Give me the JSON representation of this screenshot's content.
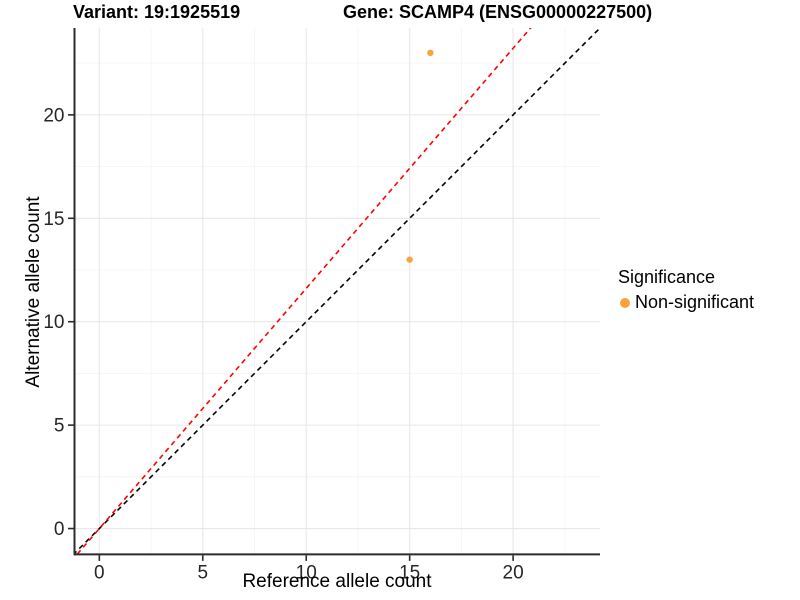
{
  "figure": {
    "title_left": "Variant: 19:1925519",
    "title_right": "Gene: SCAMP4 (ENSG00000227500)"
  },
  "chart_data": {
    "type": "scatter",
    "title": "Variant: 19:1925519 — Gene: SCAMP4 (ENSG00000227500)",
    "xlabel": "Reference allele count",
    "ylabel": "Alternative allele count",
    "xlim": [
      -1.2,
      24.2
    ],
    "ylim": [
      -1.25,
      24.2
    ],
    "xticks": [
      0,
      5,
      10,
      15,
      20
    ],
    "yticks": [
      0,
      5,
      10,
      15,
      20
    ],
    "xminor": [
      2.5,
      7.5,
      12.5,
      17.5,
      22.5
    ],
    "yminor": [
      2.5,
      7.5,
      12.5,
      17.5,
      22.5
    ],
    "grid": true,
    "points": [
      {
        "x": 16,
        "y": 23,
        "series": "Non-significant"
      },
      {
        "x": 15,
        "y": 13,
        "series": "Non-significant"
      }
    ],
    "point_color": "#F9A33C",
    "lines": [
      {
        "name": "identity-line",
        "slope": 1,
        "intercept": 0,
        "color": "#000000",
        "style": "dashed"
      },
      {
        "name": "allelic-ratio-line",
        "slope": 1.161,
        "intercept": 0,
        "color": "#FF0000",
        "style": "dashed"
      }
    ],
    "legend": {
      "title": "Significance",
      "position": "right",
      "items": [
        {
          "label": "Non-significant",
          "color": "#F9A33C"
        }
      ]
    },
    "colors": {
      "grid_major": "#E8E8E8",
      "grid_minor": "#F4F4F4",
      "axis": "#2B2B2B",
      "tick_text": "#262626"
    }
  }
}
